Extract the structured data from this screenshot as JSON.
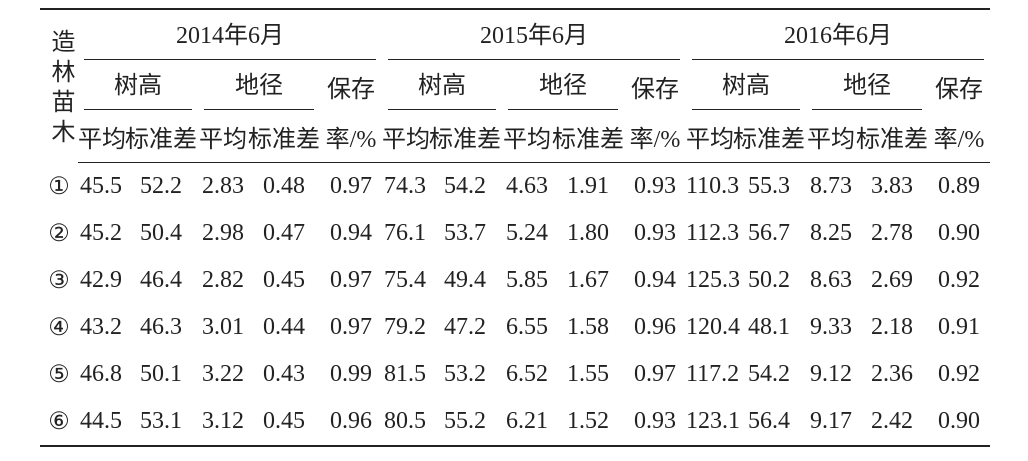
{
  "header": {
    "corner": "造林苗木",
    "years": [
      "2014年6月",
      "2015年6月",
      "2016年6月"
    ],
    "groups": [
      "树高",
      "地径"
    ],
    "survival_top": "保存",
    "survival_bottom": "率/%",
    "stats": [
      "平均",
      "标准差"
    ]
  },
  "table": {
    "rows": [
      [
        "①",
        "45.5",
        "52.2",
        "2.83",
        "0.48",
        "0.97",
        "74.3",
        "54.2",
        "4.63",
        "1.91",
        "0.93",
        "110.3",
        "55.3",
        "8.73",
        "3.83",
        "0.89"
      ],
      [
        "②",
        "45.2",
        "50.4",
        "2.98",
        "0.47",
        "0.94",
        "76.1",
        "53.7",
        "5.24",
        "1.80",
        "0.93",
        "112.3",
        "56.7",
        "8.25",
        "2.78",
        "0.90"
      ],
      [
        "③",
        "42.9",
        "46.4",
        "2.82",
        "0.45",
        "0.97",
        "75.4",
        "49.4",
        "5.85",
        "1.67",
        "0.94",
        "125.3",
        "50.2",
        "8.63",
        "2.69",
        "0.92"
      ],
      [
        "④",
        "43.2",
        "46.3",
        "3.01",
        "0.44",
        "0.97",
        "79.2",
        "47.2",
        "6.55",
        "1.58",
        "0.96",
        "120.4",
        "48.1",
        "9.33",
        "2.18",
        "0.91"
      ],
      [
        "⑤",
        "46.8",
        "50.1",
        "3.22",
        "0.43",
        "0.99",
        "81.5",
        "53.2",
        "6.52",
        "1.55",
        "0.97",
        "117.2",
        "54.2",
        "9.12",
        "2.36",
        "0.92"
      ],
      [
        "⑥",
        "44.5",
        "53.1",
        "3.12",
        "0.45",
        "0.96",
        "80.5",
        "55.2",
        "6.21",
        "1.52",
        "0.93",
        "123.1",
        "56.4",
        "9.17",
        "2.42",
        "0.90"
      ]
    ]
  }
}
